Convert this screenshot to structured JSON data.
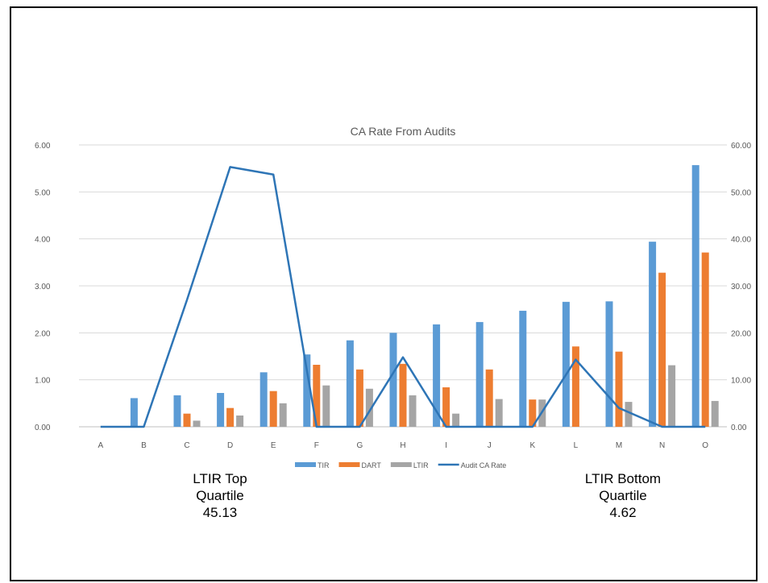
{
  "chart_data": {
    "type": "bar",
    "title": "CA Rate From Audits",
    "categories": [
      "A",
      "B",
      "C",
      "D",
      "E",
      "F",
      "G",
      "H",
      "I",
      "J",
      "K",
      "L",
      "M",
      "N",
      "O"
    ],
    "series": [
      {
        "name": "TIR",
        "kind": "bar",
        "axis": "left",
        "color": "#5B9BD5",
        "values": [
          0.0,
          0.61,
          0.67,
          0.72,
          1.16,
          1.54,
          1.84,
          2.0,
          2.18,
          2.23,
          2.47,
          2.66,
          2.67,
          3.94,
          5.57
        ]
      },
      {
        "name": "DART",
        "kind": "bar",
        "axis": "left",
        "color": "#ED7D31",
        "values": [
          0.0,
          0.0,
          0.28,
          0.4,
          0.76,
          1.32,
          1.22,
          1.34,
          0.84,
          1.22,
          0.58,
          1.71,
          1.6,
          3.28,
          3.71
        ]
      },
      {
        "name": "LTIR",
        "kind": "bar",
        "axis": "left",
        "color": "#A5A5A5",
        "values": [
          0.0,
          0.0,
          0.13,
          0.24,
          0.5,
          0.88,
          0.81,
          0.67,
          0.28,
          0.59,
          0.58,
          0.0,
          0.53,
          1.31,
          0.55
        ]
      },
      {
        "name": "Audit CA Rate",
        "kind": "line",
        "axis": "right",
        "color": "#2E75B6",
        "values": [
          0.0,
          0.0,
          27.0,
          55.3,
          53.7,
          0.0,
          0.0,
          14.8,
          0.0,
          0.0,
          0.0,
          14.3,
          4.0,
          0.0,
          0.0
        ]
      }
    ],
    "y_left": {
      "ticks": [
        "0.00",
        "1.00",
        "2.00",
        "3.00",
        "4.00",
        "5.00",
        "6.00"
      ],
      "range": [
        0,
        6
      ]
    },
    "y_right": {
      "ticks": [
        "0.00",
        "10.00",
        "20.00",
        "30.00",
        "40.00",
        "50.00",
        "60.00"
      ],
      "range": [
        0,
        60
      ]
    },
    "grid": true,
    "legend_position": "bottom"
  },
  "annotations": {
    "left": {
      "lines": [
        "LTIR Top",
        "Quartile",
        "45.13"
      ]
    },
    "right": {
      "lines": [
        "LTIR Bottom",
        "Quartile",
        "4.62"
      ]
    }
  }
}
